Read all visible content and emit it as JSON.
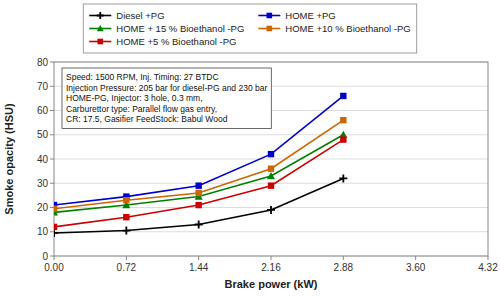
{
  "chart_data": {
    "type": "line",
    "x": [
      0,
      0.72,
      1.44,
      2.16,
      2.88
    ],
    "series": [
      {
        "name": "Diesel +PG",
        "color": "#000000",
        "marker": "plus",
        "values": [
          9.5,
          10.5,
          13,
          19,
          32
        ]
      },
      {
        "name": "HOME +PG",
        "color": "#0000cc",
        "marker": "square",
        "values": [
          21,
          24.5,
          29,
          42,
          66
        ]
      },
      {
        "name": "HOME + 15 % Bioethanol -PG",
        "color": "#008000",
        "marker": "triangle",
        "values": [
          18,
          21,
          24.5,
          33,
          50
        ]
      },
      {
        "name": "HOME +10 % Bioethanol -PG",
        "color": "#cc6600",
        "marker": "square",
        "values": [
          19.5,
          23,
          26,
          36,
          56
        ]
      },
      {
        "name": "HOME +5 % Bioethanol -PG",
        "color": "#cc0000",
        "marker": "square",
        "values": [
          12,
          16,
          21,
          29,
          48
        ]
      }
    ],
    "x_label": "Brake power (kW)",
    "y_label": "Smoke opacity (HSU)",
    "xlim": [
      0,
      4.32
    ],
    "ylim": [
      0,
      80
    ],
    "xticks": [
      {
        "value": 0,
        "label": "0.00"
      },
      0.72,
      1.44,
      2.16,
      2.88,
      {
        "value": 3.6,
        "label": "3.60"
      },
      4.32
    ],
    "yticks": [
      0,
      10,
      20,
      30,
      40,
      50,
      60,
      70,
      80
    ],
    "annotations": [
      "Speed: 1500 RPM, Inj. Timing:  27 BTDC",
      "Injection Pressure: 205 bar for diesel-PG and 230 bar",
      "HOME-PG, Injector: 3 hole, 0.3 mm,",
      "Carburettor type: Parallel  flow gas entry,",
      "CR: 17.5, Gasifier FeedStock: Babul Wood"
    ],
    "grid": "y",
    "legend": "top"
  }
}
